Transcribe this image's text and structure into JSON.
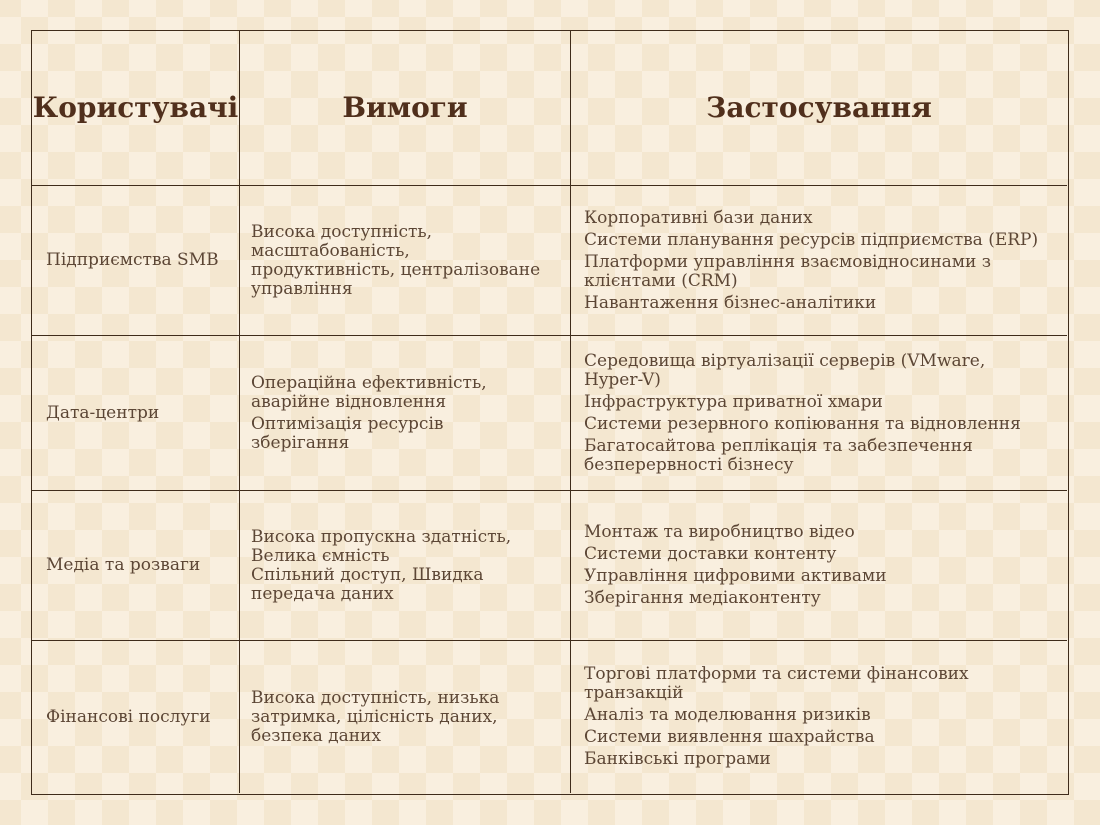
{
  "table": {
    "headers": [
      {
        "label": "Користувачі"
      },
      {
        "label": "Вимоги"
      },
      {
        "label": "Застосування"
      }
    ],
    "rows": [
      {
        "user": "Підприємства SMB",
        "requirements": [
          "Висока доступність,\nмасштабованість,\nпродуктивність, централізоване\nуправління"
        ],
        "applications": [
          "Корпоративні бази даних",
          "Системи планування ресурсів підприємства (ERP)",
          "Платформи управління взаємовідносинами з\nклієнтами (CRM)",
          "Навантаження бізнес-аналітики"
        ]
      },
      {
        "user": "Дата-центри",
        "requirements": [
          "Операційна ефективність,\nаварійне відновлення",
          "Оптимізація ресурсів\nзберігання"
        ],
        "applications": [
          "Середовища віртуалізації серверів (VMware,\nHyper-V)",
          "Інфраструктура приватної хмари",
          "Системи резервного копіювання та відновлення",
          "Багатосайтова реплікація та забезпечення\nбезперервності бізнесу"
        ]
      },
      {
        "user": "Медіа та розваги",
        "requirements": [
          "Висока пропускна здатність,\nВелика ємність\nСпільний доступ, Швидка\nпередача даних"
        ],
        "applications": [
          "Монтаж та виробництво відео",
          "Системи доставки контенту",
          "Управління цифровими активами",
          "Зберігання медіаконтенту"
        ]
      },
      {
        "user": "Фінансові послуги",
        "requirements": [
          "Висока доступність, низька\nзатримка, цілісність даних,\nбезпека даних"
        ],
        "applications": [
          "Торгові платформи та системи фінансових\nтранзакцій",
          "Аналіз та моделювання ризиків",
          "Системи виявлення шахрайства",
          "Банківські програми"
        ]
      }
    ]
  },
  "colors": {
    "background_base": "#f4e7d0",
    "background_check": "#f9efdf",
    "border": "#3f2c1b",
    "header_text": "#502f1c",
    "body_text": "#5c4635"
  }
}
